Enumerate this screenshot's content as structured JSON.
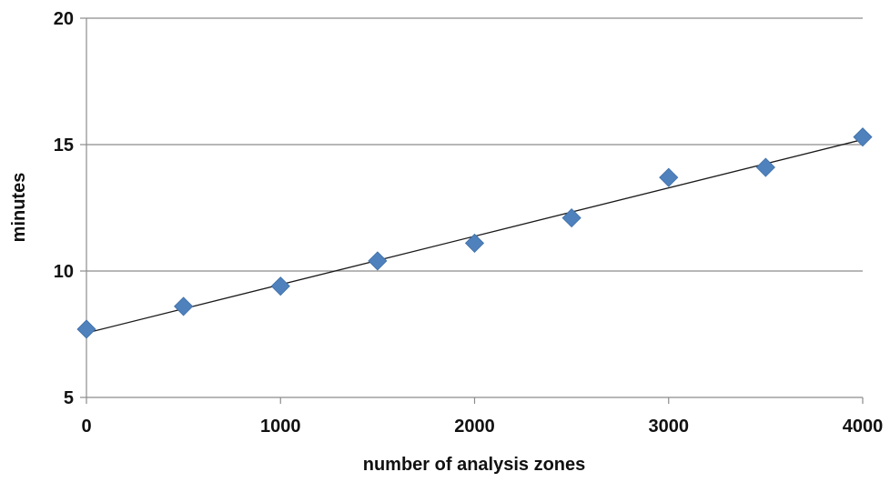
{
  "chart_data": {
    "type": "scatter",
    "title": "",
    "xlabel": "number of analysis zones",
    "ylabel": "minutes",
    "xlim": [
      0,
      4000
    ],
    "ylim": [
      5,
      20
    ],
    "x_ticks": [
      0,
      1000,
      2000,
      3000,
      4000
    ],
    "y_ticks": [
      5,
      10,
      15,
      20
    ],
    "x_tick_labels": [
      "0",
      "1000",
      "2000",
      "3000",
      "4000"
    ],
    "y_tick_labels": [
      "5",
      "10",
      "15",
      "20"
    ],
    "grid": "horizontal",
    "legend": "none",
    "marker": "diamond",
    "marker_color": "#4F81BD",
    "trendline_color": "#1a1a1a",
    "series": [
      {
        "x": [
          0,
          500,
          1000,
          1500,
          2000,
          2500,
          3000,
          3500,
          4000
        ],
        "y": [
          7.7,
          8.6,
          9.4,
          10.4,
          11.1,
          12.1,
          13.7,
          14.1,
          15.3
        ]
      }
    ],
    "trendline": {
      "type": "linear",
      "start": [
        0,
        7.55
      ],
      "end": [
        4000,
        15.2
      ]
    }
  }
}
